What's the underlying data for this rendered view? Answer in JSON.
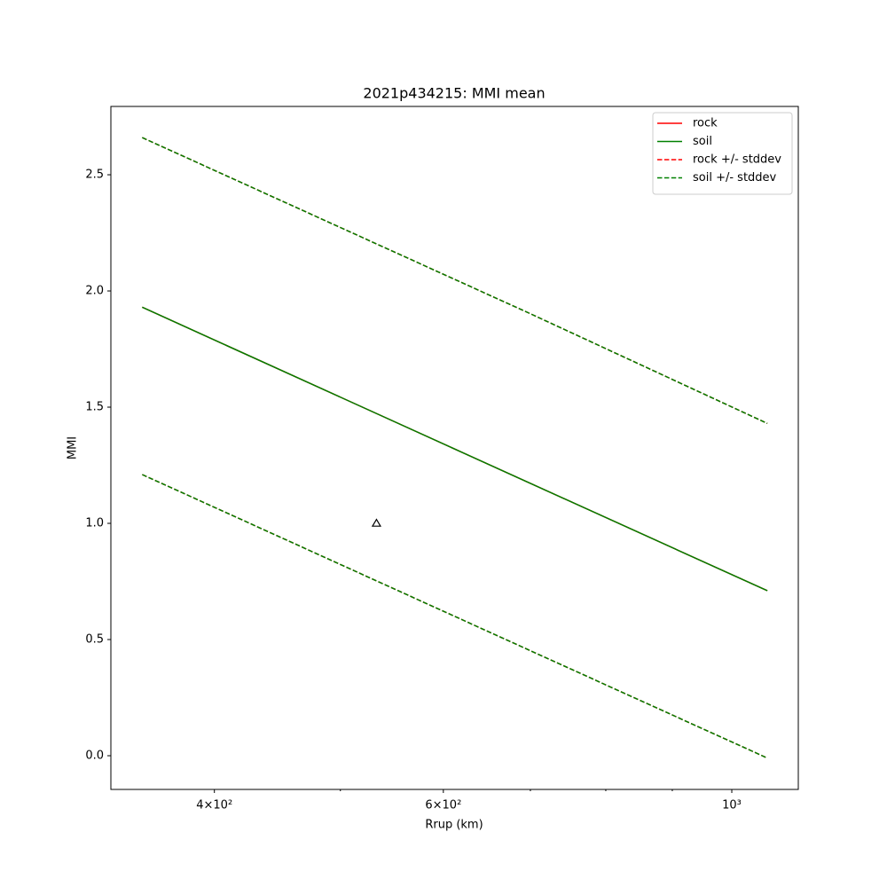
{
  "chart_data": {
    "type": "line",
    "title": "2021p434215: MMI mean",
    "xlabel": "Rrup (km)",
    "ylabel": "MMI",
    "xscale": "log",
    "xlim": [
      333,
      1125
    ],
    "ylim": [
      -0.145,
      2.794
    ],
    "xticks": [
      {
        "value": 400,
        "label": "4×10²"
      },
      {
        "value": 600,
        "label": "6×10²"
      },
      {
        "value": 1000,
        "label": "10³"
      }
    ],
    "xminorticks": [
      500,
      700,
      800,
      900
    ],
    "yticks": [
      {
        "value": 0,
        "label": "0.0"
      },
      0.5,
      {
        "value": 1,
        "label": "1.0"
      },
      1.5,
      {
        "value": 2,
        "label": "2.0"
      },
      2.5
    ],
    "x": [
      352,
      500,
      700,
      1065
    ],
    "series": [
      {
        "name": "rock",
        "color": "#ff0000",
        "style": "solid",
        "values": [
          1.93,
          1.543,
          1.172,
          0.71
        ]
      },
      {
        "name": "soil",
        "color": "#008000",
        "style": "solid",
        "values": [
          1.93,
          1.543,
          1.172,
          0.71
        ]
      },
      {
        "name": "rock +/- stddev",
        "color": "#ff0000",
        "style": "dashed",
        "upper": [
          2.66,
          2.273,
          1.902,
          1.43
        ],
        "lower": [
          1.21,
          0.823,
          0.452,
          -0.01
        ]
      },
      {
        "name": "soil +/- stddev",
        "color": "#008000",
        "style": "dashed",
        "upper": [
          2.66,
          2.273,
          1.902,
          1.43
        ],
        "lower": [
          1.21,
          0.823,
          0.452,
          -0.01
        ]
      }
    ],
    "points": {
      "x": [
        533
      ],
      "y": [
        1.0
      ],
      "marker": "triangle",
      "color": "#000000"
    },
    "legend": "upper right",
    "grid": false
  }
}
